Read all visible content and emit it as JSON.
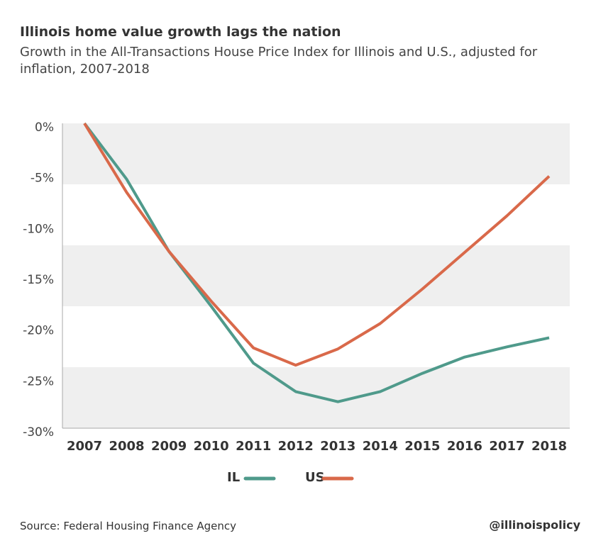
{
  "chart_data": {
    "type": "line",
    "title": "Illinois home value growth lags the nation",
    "subtitle": "Growth in the All-Transactions House Price Index for Illinois and U.S., adjusted for inflation, 2007-2018",
    "categories": [
      "2007",
      "2008",
      "2009",
      "2010",
      "2011",
      "2012",
      "2013",
      "2014",
      "2015",
      "2016",
      "2017",
      "2018"
    ],
    "series": [
      {
        "name": "IL",
        "color": "#4f9a8b",
        "values": [
          0,
          -5.5,
          -12.6,
          -18.0,
          -23.6,
          -26.4,
          -27.4,
          -26.4,
          -24.6,
          -23.0,
          -22.0,
          -21.1
        ]
      },
      {
        "name": "US",
        "color": "#d9694a",
        "values": [
          0,
          -6.8,
          -12.6,
          -17.5,
          -22.1,
          -23.8,
          -22.2,
          -19.7,
          -16.3,
          -12.7,
          -9.1,
          -5.2
        ]
      }
    ],
    "ylim": [
      -30,
      0
    ],
    "yticks": [
      {
        "value": 0,
        "label": "0%"
      },
      {
        "value": -5,
        "label": "-5%"
      },
      {
        "value": -10,
        "label": "-10%"
      },
      {
        "value": -15,
        "label": "-15%"
      },
      {
        "value": -20,
        "label": "-20%"
      },
      {
        "value": -25,
        "label": "-25%"
      },
      {
        "value": -30,
        "label": "-30%"
      }
    ],
    "source": "Source: Federal Housing Finance Agency",
    "credit": "@illinoispolicy"
  }
}
